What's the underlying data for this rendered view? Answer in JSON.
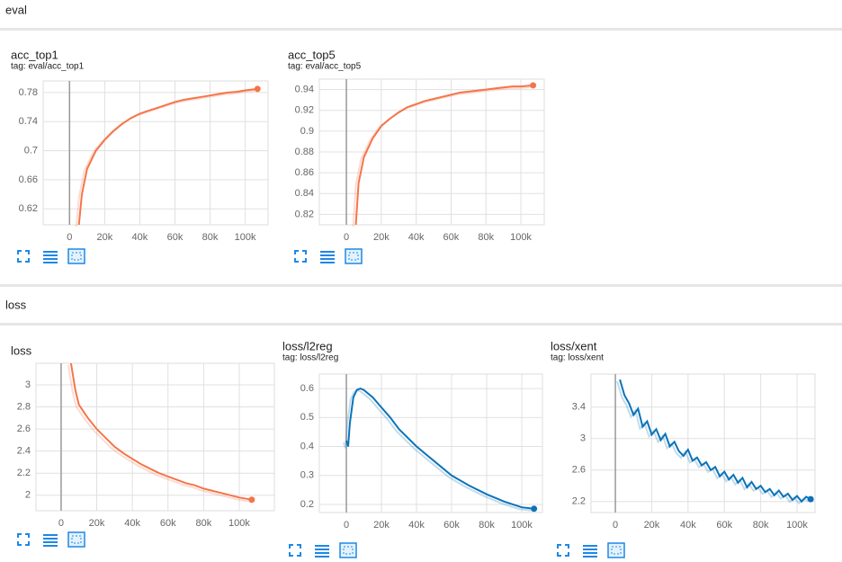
{
  "sections": [
    {
      "title": "eval"
    },
    {
      "title": "loss"
    }
  ],
  "chart_data": [
    {
      "type": "line",
      "title": "acc_top1",
      "subtitle": "tag: eval/acc_top1",
      "color": "#f4754a",
      "grid": true,
      "x": [
        5000,
        7000,
        10000,
        15000,
        20000,
        25000,
        30000,
        35000,
        40000,
        45000,
        50000,
        55000,
        60000,
        65000,
        70000,
        75000,
        80000,
        85000,
        90000,
        95000,
        100000,
        107000
      ],
      "values": [
        0.59,
        0.64,
        0.675,
        0.7,
        0.715,
        0.727,
        0.737,
        0.745,
        0.751,
        0.755,
        0.759,
        0.763,
        0.767,
        0.77,
        0.772,
        0.774,
        0.776,
        0.778,
        0.78,
        0.781,
        0.783,
        0.785
      ],
      "xlim": [
        -15000,
        113000
      ],
      "ylim": [
        0.598,
        0.796
      ],
      "xticks": [
        0,
        {
          "value": 20000,
          "label": "20k"
        },
        {
          "value": 40000,
          "label": "40k"
        },
        {
          "value": 60000,
          "label": "60k"
        },
        {
          "value": 80000,
          "label": "80k"
        },
        {
          "value": 100000,
          "label": "100k"
        }
      ],
      "yticks": [
        0.62,
        0.66,
        0.7,
        0.74,
        0.78
      ]
    },
    {
      "type": "line",
      "title": "acc_top5",
      "subtitle": "tag: eval/acc_top5",
      "color": "#f4754a",
      "grid": true,
      "x": [
        5000,
        7000,
        10000,
        15000,
        20000,
        25000,
        30000,
        35000,
        40000,
        45000,
        50000,
        55000,
        60000,
        65000,
        70000,
        75000,
        80000,
        85000,
        90000,
        95000,
        100000,
        107000
      ],
      "values": [
        0.8,
        0.85,
        0.875,
        0.893,
        0.905,
        0.912,
        0.918,
        0.923,
        0.926,
        0.929,
        0.931,
        0.933,
        0.935,
        0.937,
        0.938,
        0.939,
        0.94,
        0.941,
        0.942,
        0.943,
        0.943,
        0.944
      ],
      "xlim": [
        -15500,
        113400
      ],
      "ylim": [
        0.81,
        0.95
      ],
      "xticks": [
        0,
        {
          "value": 20000,
          "label": "20k"
        },
        {
          "value": 40000,
          "label": "40k"
        },
        {
          "value": 60000,
          "label": "60k"
        },
        {
          "value": 80000,
          "label": "80k"
        },
        {
          "value": 100000,
          "label": "100k"
        }
      ],
      "yticks": [
        0.82,
        0.84,
        0.86,
        0.88,
        0.9,
        0.92,
        0.94
      ]
    },
    {
      "type": "line",
      "title": "loss",
      "color": "#f4754a",
      "grid": true,
      "x": [
        5000,
        8000,
        10000,
        15000,
        20000,
        25000,
        30000,
        35000,
        40000,
        45000,
        50000,
        55000,
        60000,
        65000,
        70000,
        75000,
        80000,
        85000,
        90000,
        95000,
        100000,
        107000
      ],
      "values": [
        3.25,
        2.95,
        2.82,
        2.7,
        2.6,
        2.52,
        2.44,
        2.38,
        2.33,
        2.28,
        2.24,
        2.2,
        2.17,
        2.14,
        2.11,
        2.09,
        2.06,
        2.04,
        2.02,
        2.0,
        1.98,
        1.96
      ],
      "xlim": [
        -14100,
        119700
      ],
      "ylim": [
        1.86,
        3.195
      ],
      "xticks": [
        0,
        {
          "value": 20000,
          "label": "20k"
        },
        {
          "value": 40000,
          "label": "40k"
        },
        {
          "value": 60000,
          "label": "60k"
        },
        {
          "value": 80000,
          "label": "80k"
        },
        {
          "value": 100000,
          "label": "100k"
        }
      ],
      "yticks": [
        2,
        2.2,
        2.4,
        2.6,
        2.8,
        3
      ]
    },
    {
      "type": "line",
      "title": "loss/l2reg",
      "subtitle": "tag: loss/l2reg",
      "color": "#0b73b9",
      "grid": true,
      "x": [
        0,
        1000,
        2000,
        4000,
        6000,
        8000,
        10000,
        15000,
        20000,
        25000,
        30000,
        40000,
        50000,
        60000,
        70000,
        80000,
        90000,
        100000,
        107000
      ],
      "values": [
        0.42,
        0.4,
        0.48,
        0.57,
        0.595,
        0.6,
        0.595,
        0.57,
        0.535,
        0.5,
        0.46,
        0.4,
        0.35,
        0.3,
        0.265,
        0.235,
        0.21,
        0.19,
        0.185
      ],
      "xlim": [
        -15400,
        111800
      ],
      "ylim": [
        0.172,
        0.65
      ],
      "xticks": [
        0,
        {
          "value": 20000,
          "label": "20k"
        },
        {
          "value": 40000,
          "label": "40k"
        },
        {
          "value": 60000,
          "label": "60k"
        },
        {
          "value": 80000,
          "label": "80k"
        },
        {
          "value": 100000,
          "label": "100k"
        }
      ],
      "yticks": [
        0.2,
        0.3,
        0.4,
        0.5,
        0.6
      ]
    },
    {
      "type": "line",
      "title": "loss/xent",
      "subtitle": "tag: loss/xent",
      "color": "#0b73b9",
      "grid": true,
      "x": [
        2500,
        5000,
        7500,
        10000,
        12500,
        15000,
        17500,
        20000,
        22500,
        25000,
        27500,
        30000,
        32500,
        35000,
        37500,
        40000,
        42500,
        45000,
        47500,
        50000,
        52500,
        55000,
        57500,
        60000,
        62500,
        65000,
        67500,
        70000,
        72500,
        75000,
        77500,
        80000,
        82500,
        85000,
        87500,
        90000,
        92500,
        95000,
        97500,
        100000,
        102500,
        105000,
        107500
      ],
      "values": [
        3.75,
        3.55,
        3.45,
        3.3,
        3.38,
        3.15,
        3.22,
        3.05,
        3.12,
        2.98,
        3.06,
        2.9,
        2.96,
        2.84,
        2.78,
        2.86,
        2.72,
        2.76,
        2.66,
        2.7,
        2.6,
        2.64,
        2.52,
        2.58,
        2.48,
        2.54,
        2.44,
        2.5,
        2.38,
        2.45,
        2.36,
        2.4,
        2.32,
        2.36,
        2.28,
        2.34,
        2.26,
        2.3,
        2.22,
        2.27,
        2.2,
        2.26,
        2.23
      ],
      "xlim": [
        -13400,
        109900
      ],
      "ylim": [
        2.06,
        3.82
      ],
      "xticks": [
        0,
        {
          "value": 20000,
          "label": "20k"
        },
        {
          "value": 40000,
          "label": "40k"
        },
        {
          "value": 60000,
          "label": "60k"
        },
        {
          "value": 80000,
          "label": "80k"
        },
        {
          "value": 100000,
          "label": "100k"
        }
      ],
      "yticks": [
        2.2,
        2.6,
        3,
        3.4
      ]
    }
  ]
}
